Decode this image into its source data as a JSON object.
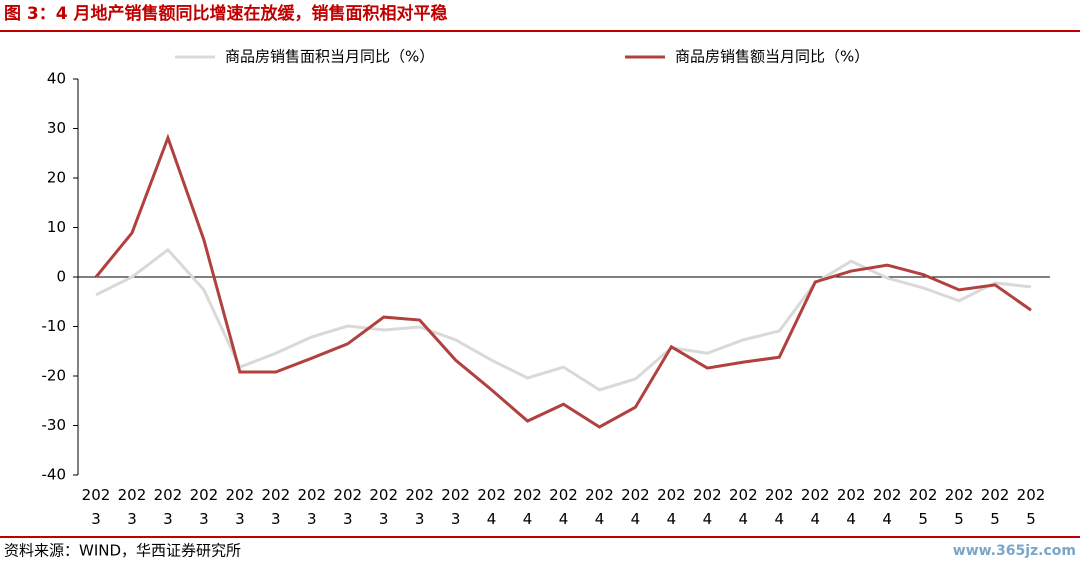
{
  "chart_data": {
    "type": "line",
    "title": "图 3：4 月地产销售额同比增速在放缓，销售面积相对平稳",
    "source": "资料来源：WIND，华西证券研究所",
    "watermark": "www.365jz.com",
    "categories": [
      "2023",
      "2023",
      "2023",
      "2023",
      "2023",
      "2023",
      "2023",
      "2023",
      "2023",
      "2023",
      "2023",
      "2024",
      "2024",
      "2024",
      "2024",
      "2024",
      "2024",
      "2024",
      "2024",
      "2024",
      "2024",
      "2024",
      "2024",
      "2025",
      "2025",
      "2025",
      "2025"
    ],
    "series": [
      {
        "name": "商品房销售面积当月同比（%）",
        "color": "#d9d9d9",
        "values": [
          -3.6,
          0,
          5.5,
          -2.6,
          -18.2,
          -15.4,
          -12.1,
          -9.9,
          -10.7,
          -10.1,
          -12.7,
          -16.8,
          -20.4,
          -18.2,
          -22.8,
          -20.6,
          -14.3,
          -15.4,
          -12.7,
          -10.9,
          -1.2,
          3.2,
          -0.2,
          -2.2,
          -4.8,
          -1.2,
          -2.0
        ]
      },
      {
        "name": "商品房销售额当月同比（%）",
        "color": "#b0413e",
        "values": [
          0,
          8.9,
          28.1,
          7.5,
          -19.2,
          -19.2,
          -16.4,
          -13.5,
          -8.1,
          -8.7,
          -16.8,
          -22.8,
          -29.1,
          -25.7,
          -30.3,
          -26.3,
          -14.1,
          -18.4,
          -17.2,
          -16.2,
          -1.0,
          1.2,
          2.4,
          0.5,
          -2.6,
          -1.6,
          -6.7
        ]
      }
    ],
    "ylim": [
      -40,
      40
    ],
    "yticks": [
      -40,
      -30,
      -20,
      -10,
      0,
      10,
      20,
      30,
      40
    ]
  }
}
